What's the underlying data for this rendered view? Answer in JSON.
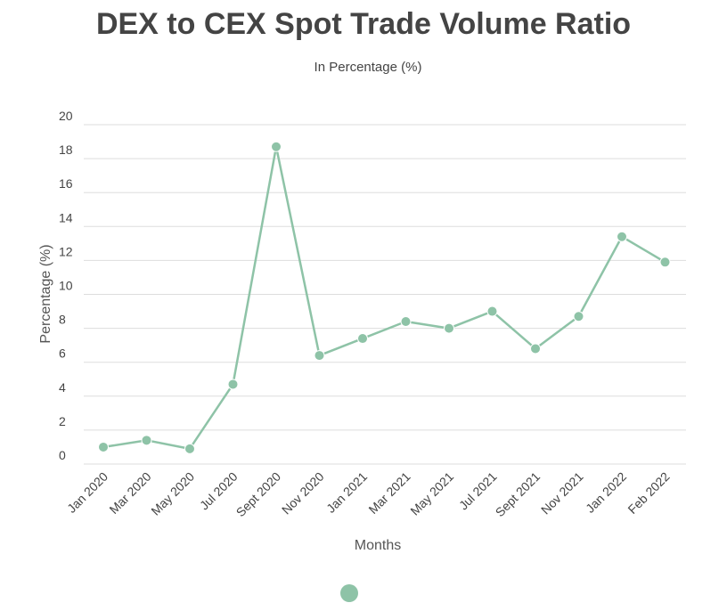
{
  "chart_data": {
    "type": "line",
    "title": "DEX to CEX Spot Trade Volume Ratio",
    "subtitle": "In Percentage (%)",
    "xlabel": "Months",
    "ylabel": "Percentage (%)",
    "ylim": [
      0,
      20
    ],
    "y_ticks": [
      0,
      2,
      4,
      6,
      8,
      10,
      12,
      14,
      16,
      18,
      20
    ],
    "categories": [
      "Jan 2020",
      "Mar 2020",
      "May 2020",
      "Jul 2020",
      "Sept 2020",
      "Nov 2020",
      "Jan 2021",
      "Mar 2021",
      "May 2021",
      "Jul 2021",
      "Sept 2021",
      "Nov 2021",
      "Jan 2022",
      "Feb 2022"
    ],
    "series": [
      {
        "values": [
          1.0,
          1.4,
          0.9,
          4.7,
          18.7,
          6.4,
          7.4,
          8.4,
          8.0,
          9.0,
          6.8,
          8.7,
          13.4,
          11.9
        ],
        "color": "#8ec3a7"
      }
    ],
    "grid": true,
    "legend": "bottom"
  }
}
